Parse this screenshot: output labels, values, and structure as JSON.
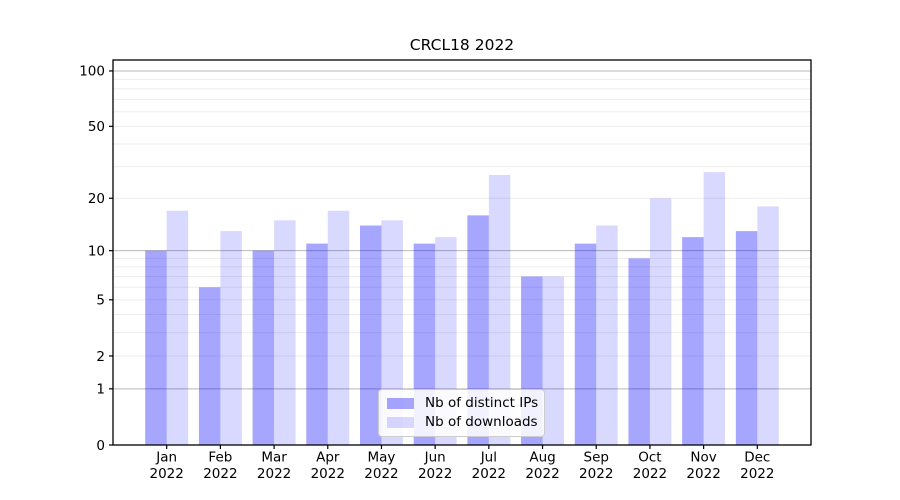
{
  "chart_data": {
    "type": "bar",
    "title": "CRCL18 2022",
    "categories": [
      "Jan",
      "Feb",
      "Mar",
      "Apr",
      "May",
      "Jun",
      "Jul",
      "Aug",
      "Sep",
      "Oct",
      "Nov",
      "Dec"
    ],
    "category_year_line": "2022",
    "series": [
      {
        "name": "Nb of distinct IPs",
        "color": "rgba(0,0,255,0.35)",
        "values": [
          10,
          6,
          10,
          11,
          14,
          11,
          16,
          7,
          11,
          9,
          12,
          13
        ]
      },
      {
        "name": "Nb of downloads",
        "color": "rgba(0,0,255,0.15)",
        "values": [
          17,
          13,
          15,
          17,
          15,
          12,
          27,
          7,
          14,
          20,
          28,
          18
        ]
      }
    ],
    "yscale": "log(1+y)",
    "ylim": [
      0,
      114.6
    ],
    "yticks": [
      0,
      1,
      2,
      5,
      10,
      20,
      50,
      100
    ],
    "major_gridlines": [
      1,
      10,
      100
    ],
    "minor_gridlines": [
      2,
      3,
      4,
      5,
      6,
      7,
      8,
      9,
      20,
      30,
      40,
      50,
      60,
      70,
      80,
      90
    ],
    "grid": true,
    "legend_position": "lower center",
    "colors": {
      "spine": "#000000",
      "major_grid": "#b8b8b8",
      "minor_grid": "#ededed",
      "text": "#000000",
      "background": "#ffffff"
    }
  }
}
